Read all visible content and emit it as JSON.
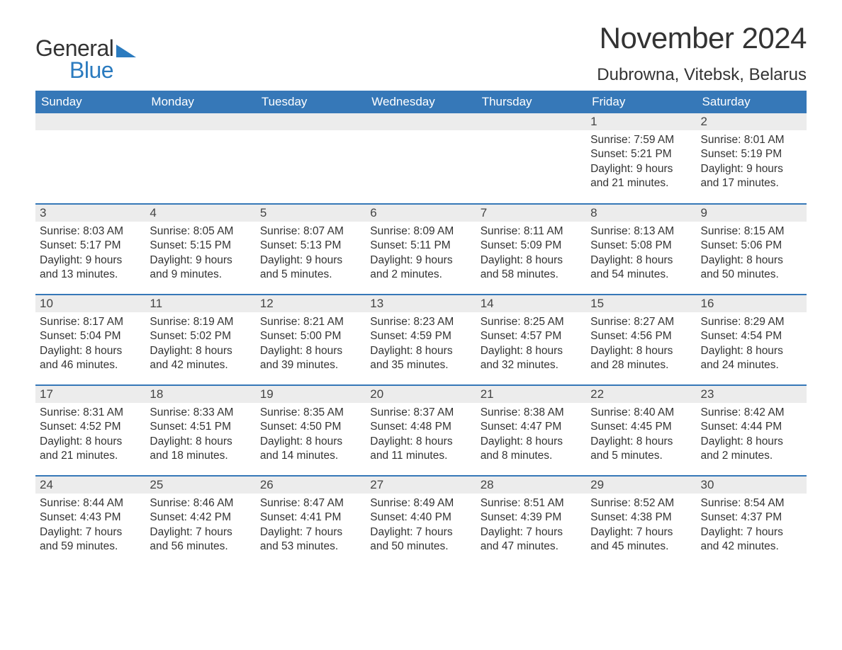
{
  "brand": {
    "text_general": "General",
    "text_blue": "Blue",
    "general_color": "#333333",
    "blue_color": "#2b7bbf"
  },
  "title": "November 2024",
  "location": "Dubrowna, Vitebsk, Belarus",
  "colors": {
    "header_bg": "#3678b8",
    "header_text": "#ffffff",
    "daynum_bg": "#ececec",
    "border": "#3678b8",
    "body_text": "#333333",
    "page_bg": "#ffffff"
  },
  "typography": {
    "title_fontsize": 42,
    "location_fontsize": 24,
    "header_fontsize": 17,
    "daynum_fontsize": 17,
    "content_fontsize": 15.5,
    "font_family": "Arial"
  },
  "columns": [
    "Sunday",
    "Monday",
    "Tuesday",
    "Wednesday",
    "Thursday",
    "Friday",
    "Saturday"
  ],
  "weeks": [
    [
      null,
      null,
      null,
      null,
      null,
      {
        "day": "1",
        "sunrise": "Sunrise: 7:59 AM",
        "sunset": "Sunset: 5:21 PM",
        "daylight1": "Daylight: 9 hours",
        "daylight2": "and 21 minutes."
      },
      {
        "day": "2",
        "sunrise": "Sunrise: 8:01 AM",
        "sunset": "Sunset: 5:19 PM",
        "daylight1": "Daylight: 9 hours",
        "daylight2": "and 17 minutes."
      }
    ],
    [
      {
        "day": "3",
        "sunrise": "Sunrise: 8:03 AM",
        "sunset": "Sunset: 5:17 PM",
        "daylight1": "Daylight: 9 hours",
        "daylight2": "and 13 minutes."
      },
      {
        "day": "4",
        "sunrise": "Sunrise: 8:05 AM",
        "sunset": "Sunset: 5:15 PM",
        "daylight1": "Daylight: 9 hours",
        "daylight2": "and 9 minutes."
      },
      {
        "day": "5",
        "sunrise": "Sunrise: 8:07 AM",
        "sunset": "Sunset: 5:13 PM",
        "daylight1": "Daylight: 9 hours",
        "daylight2": "and 5 minutes."
      },
      {
        "day": "6",
        "sunrise": "Sunrise: 8:09 AM",
        "sunset": "Sunset: 5:11 PM",
        "daylight1": "Daylight: 9 hours",
        "daylight2": "and 2 minutes."
      },
      {
        "day": "7",
        "sunrise": "Sunrise: 8:11 AM",
        "sunset": "Sunset: 5:09 PM",
        "daylight1": "Daylight: 8 hours",
        "daylight2": "and 58 minutes."
      },
      {
        "day": "8",
        "sunrise": "Sunrise: 8:13 AM",
        "sunset": "Sunset: 5:08 PM",
        "daylight1": "Daylight: 8 hours",
        "daylight2": "and 54 minutes."
      },
      {
        "day": "9",
        "sunrise": "Sunrise: 8:15 AM",
        "sunset": "Sunset: 5:06 PM",
        "daylight1": "Daylight: 8 hours",
        "daylight2": "and 50 minutes."
      }
    ],
    [
      {
        "day": "10",
        "sunrise": "Sunrise: 8:17 AM",
        "sunset": "Sunset: 5:04 PM",
        "daylight1": "Daylight: 8 hours",
        "daylight2": "and 46 minutes."
      },
      {
        "day": "11",
        "sunrise": "Sunrise: 8:19 AM",
        "sunset": "Sunset: 5:02 PM",
        "daylight1": "Daylight: 8 hours",
        "daylight2": "and 42 minutes."
      },
      {
        "day": "12",
        "sunrise": "Sunrise: 8:21 AM",
        "sunset": "Sunset: 5:00 PM",
        "daylight1": "Daylight: 8 hours",
        "daylight2": "and 39 minutes."
      },
      {
        "day": "13",
        "sunrise": "Sunrise: 8:23 AM",
        "sunset": "Sunset: 4:59 PM",
        "daylight1": "Daylight: 8 hours",
        "daylight2": "and 35 minutes."
      },
      {
        "day": "14",
        "sunrise": "Sunrise: 8:25 AM",
        "sunset": "Sunset: 4:57 PM",
        "daylight1": "Daylight: 8 hours",
        "daylight2": "and 32 minutes."
      },
      {
        "day": "15",
        "sunrise": "Sunrise: 8:27 AM",
        "sunset": "Sunset: 4:56 PM",
        "daylight1": "Daylight: 8 hours",
        "daylight2": "and 28 minutes."
      },
      {
        "day": "16",
        "sunrise": "Sunrise: 8:29 AM",
        "sunset": "Sunset: 4:54 PM",
        "daylight1": "Daylight: 8 hours",
        "daylight2": "and 24 minutes."
      }
    ],
    [
      {
        "day": "17",
        "sunrise": "Sunrise: 8:31 AM",
        "sunset": "Sunset: 4:52 PM",
        "daylight1": "Daylight: 8 hours",
        "daylight2": "and 21 minutes."
      },
      {
        "day": "18",
        "sunrise": "Sunrise: 8:33 AM",
        "sunset": "Sunset: 4:51 PM",
        "daylight1": "Daylight: 8 hours",
        "daylight2": "and 18 minutes."
      },
      {
        "day": "19",
        "sunrise": "Sunrise: 8:35 AM",
        "sunset": "Sunset: 4:50 PM",
        "daylight1": "Daylight: 8 hours",
        "daylight2": "and 14 minutes."
      },
      {
        "day": "20",
        "sunrise": "Sunrise: 8:37 AM",
        "sunset": "Sunset: 4:48 PM",
        "daylight1": "Daylight: 8 hours",
        "daylight2": "and 11 minutes."
      },
      {
        "day": "21",
        "sunrise": "Sunrise: 8:38 AM",
        "sunset": "Sunset: 4:47 PM",
        "daylight1": "Daylight: 8 hours",
        "daylight2": "and 8 minutes."
      },
      {
        "day": "22",
        "sunrise": "Sunrise: 8:40 AM",
        "sunset": "Sunset: 4:45 PM",
        "daylight1": "Daylight: 8 hours",
        "daylight2": "and 5 minutes."
      },
      {
        "day": "23",
        "sunrise": "Sunrise: 8:42 AM",
        "sunset": "Sunset: 4:44 PM",
        "daylight1": "Daylight: 8 hours",
        "daylight2": "and 2 minutes."
      }
    ],
    [
      {
        "day": "24",
        "sunrise": "Sunrise: 8:44 AM",
        "sunset": "Sunset: 4:43 PM",
        "daylight1": "Daylight: 7 hours",
        "daylight2": "and 59 minutes."
      },
      {
        "day": "25",
        "sunrise": "Sunrise: 8:46 AM",
        "sunset": "Sunset: 4:42 PM",
        "daylight1": "Daylight: 7 hours",
        "daylight2": "and 56 minutes."
      },
      {
        "day": "26",
        "sunrise": "Sunrise: 8:47 AM",
        "sunset": "Sunset: 4:41 PM",
        "daylight1": "Daylight: 7 hours",
        "daylight2": "and 53 minutes."
      },
      {
        "day": "27",
        "sunrise": "Sunrise: 8:49 AM",
        "sunset": "Sunset: 4:40 PM",
        "daylight1": "Daylight: 7 hours",
        "daylight2": "and 50 minutes."
      },
      {
        "day": "28",
        "sunrise": "Sunrise: 8:51 AM",
        "sunset": "Sunset: 4:39 PM",
        "daylight1": "Daylight: 7 hours",
        "daylight2": "and 47 minutes."
      },
      {
        "day": "29",
        "sunrise": "Sunrise: 8:52 AM",
        "sunset": "Sunset: 4:38 PM",
        "daylight1": "Daylight: 7 hours",
        "daylight2": "and 45 minutes."
      },
      {
        "day": "30",
        "sunrise": "Sunrise: 8:54 AM",
        "sunset": "Sunset: 4:37 PM",
        "daylight1": "Daylight: 7 hours",
        "daylight2": "and 42 minutes."
      }
    ]
  ]
}
